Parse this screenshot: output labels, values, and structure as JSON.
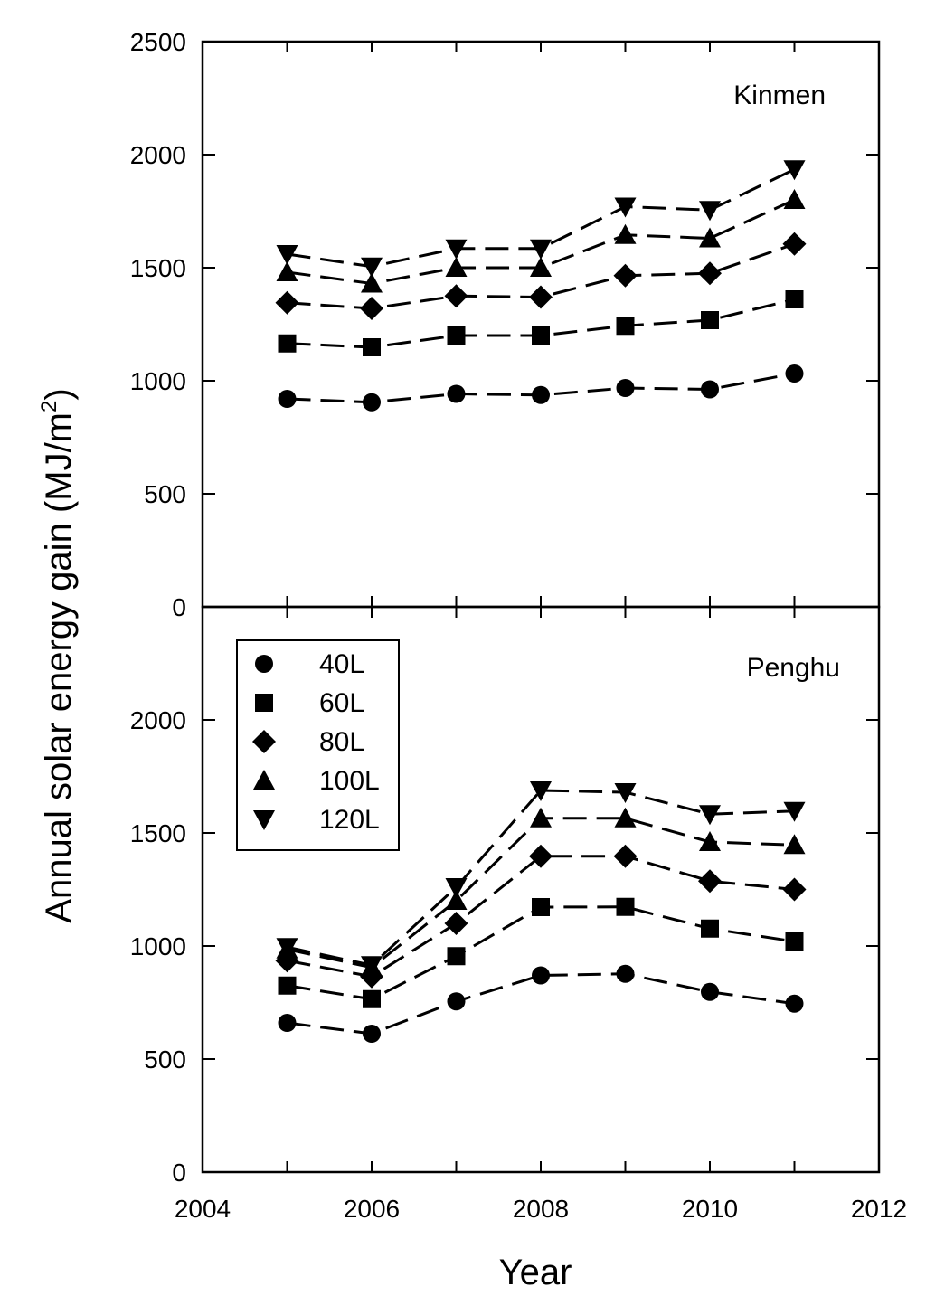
{
  "chart_data": {
    "type": "line",
    "xlabel": "Year",
    "ylabel": "Annual solar energy gain (MJ/m",
    "ylabel_superscript": "2",
    "ylabel_close": ")",
    "xlim": [
      2004,
      2012
    ],
    "x_ticks": [
      "2004",
      "2006",
      "2008",
      "2010",
      "2012"
    ],
    "legend": {
      "placement": "top-left of lower panel",
      "entries": [
        {
          "label": "40L",
          "marker": "circle"
        },
        {
          "label": "60L",
          "marker": "square"
        },
        {
          "label": "80L",
          "marker": "diamond"
        },
        {
          "label": "100L",
          "marker": "triangle-up"
        },
        {
          "label": "120L",
          "marker": "triangle-down"
        }
      ]
    },
    "panels": [
      {
        "label": "Kinmen",
        "ylim": [
          0,
          2500
        ],
        "y_ticks": [
          "0",
          "500",
          "1000",
          "1500",
          "2000",
          "2500"
        ],
        "x": [
          2005,
          2006,
          2007,
          2008,
          2009,
          2010,
          2011
        ],
        "series": [
          {
            "marker": "circle",
            "values": [
              920,
              905,
              942,
              937,
              968,
              962,
              1032
            ]
          },
          {
            "marker": "square",
            "values": [
              1165,
              1148,
              1200,
              1200,
              1243,
              1268,
              1360
            ]
          },
          {
            "marker": "diamond",
            "values": [
              1345,
              1320,
              1375,
              1370,
              1465,
              1475,
              1605
            ]
          },
          {
            "marker": "triangle-up",
            "values": [
              1480,
              1430,
              1500,
              1500,
              1645,
              1630,
              1800
            ]
          },
          {
            "marker": "triangle-down",
            "values": [
              1560,
              1505,
              1585,
              1585,
              1770,
              1755,
              1935
            ]
          }
        ]
      },
      {
        "label": "Penghu",
        "ylim": [
          0,
          2500
        ],
        "y_ticks": [
          "0",
          "500",
          "1000",
          "1500",
          "2000",
          ""
        ],
        "x": [
          2005,
          2006,
          2007,
          2008,
          2009,
          2010,
          2011
        ],
        "series": [
          {
            "marker": "circle",
            "values": [
              660,
              612,
              755,
              870,
              877,
              797,
              745
            ]
          },
          {
            "marker": "square",
            "values": [
              825,
              765,
              955,
              1172,
              1173,
              1077,
              1020
            ]
          },
          {
            "marker": "diamond",
            "values": [
              935,
              865,
              1100,
              1397,
              1397,
              1287,
              1250
            ]
          },
          {
            "marker": "triangle-up",
            "values": [
              985,
              905,
              1200,
              1565,
              1565,
              1460,
              1447
            ]
          },
          {
            "marker": "triangle-down",
            "values": [
              995,
              915,
              1260,
              1688,
              1680,
              1583,
              1597
            ]
          }
        ]
      }
    ]
  }
}
